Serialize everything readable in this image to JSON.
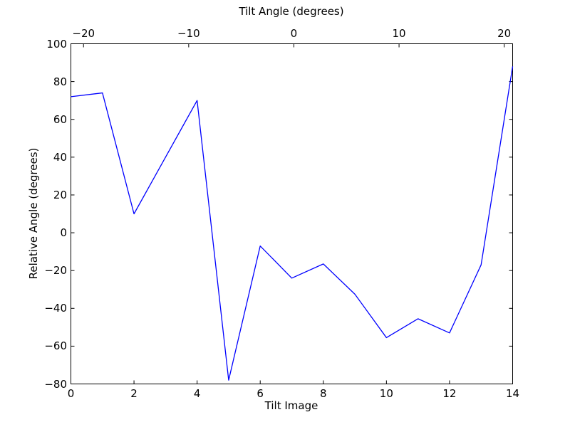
{
  "figure": {
    "background": "#ffffff",
    "axis_color": "#000000",
    "text_color": "#000000"
  },
  "chart_data": {
    "type": "line",
    "top_xlabel": "Tilt Angle (degrees)",
    "xlabel": "Tilt Image",
    "ylabel": "Relative Angle (degrees)",
    "x": [
      0,
      1,
      2,
      3,
      4,
      5,
      6,
      7,
      8,
      9,
      10,
      11,
      12,
      13,
      14
    ],
    "y": [
      72,
      74,
      10,
      40,
      70,
      -78,
      -7,
      -24,
      -16.5,
      -32.5,
      -55.5,
      -45.5,
      -53,
      -17,
      88
    ],
    "xlim": [
      0,
      14
    ],
    "ylim": [
      -80,
      100
    ],
    "top_xlim": [
      -21.2,
      20.8
    ],
    "x_tick_values": [
      0,
      2,
      4,
      6,
      8,
      10,
      12,
      14
    ],
    "x_tick_labels": [
      "0",
      "2",
      "4",
      "6",
      "8",
      "10",
      "12",
      "14"
    ],
    "y_tick_values": [
      100,
      80,
      60,
      40,
      20,
      0,
      -20,
      -40,
      -60,
      -80
    ],
    "y_tick_labels": [
      "100",
      "80",
      "60",
      "40",
      "20",
      "0",
      "−20",
      "−40",
      "−60",
      "−80"
    ],
    "top_tick_values": [
      -20,
      -10,
      0,
      10,
      20
    ],
    "top_tick_labels": [
      "−20",
      "−10",
      "0",
      "10",
      "20"
    ],
    "line_color": "#0000ff",
    "grid": false,
    "legend": null
  }
}
